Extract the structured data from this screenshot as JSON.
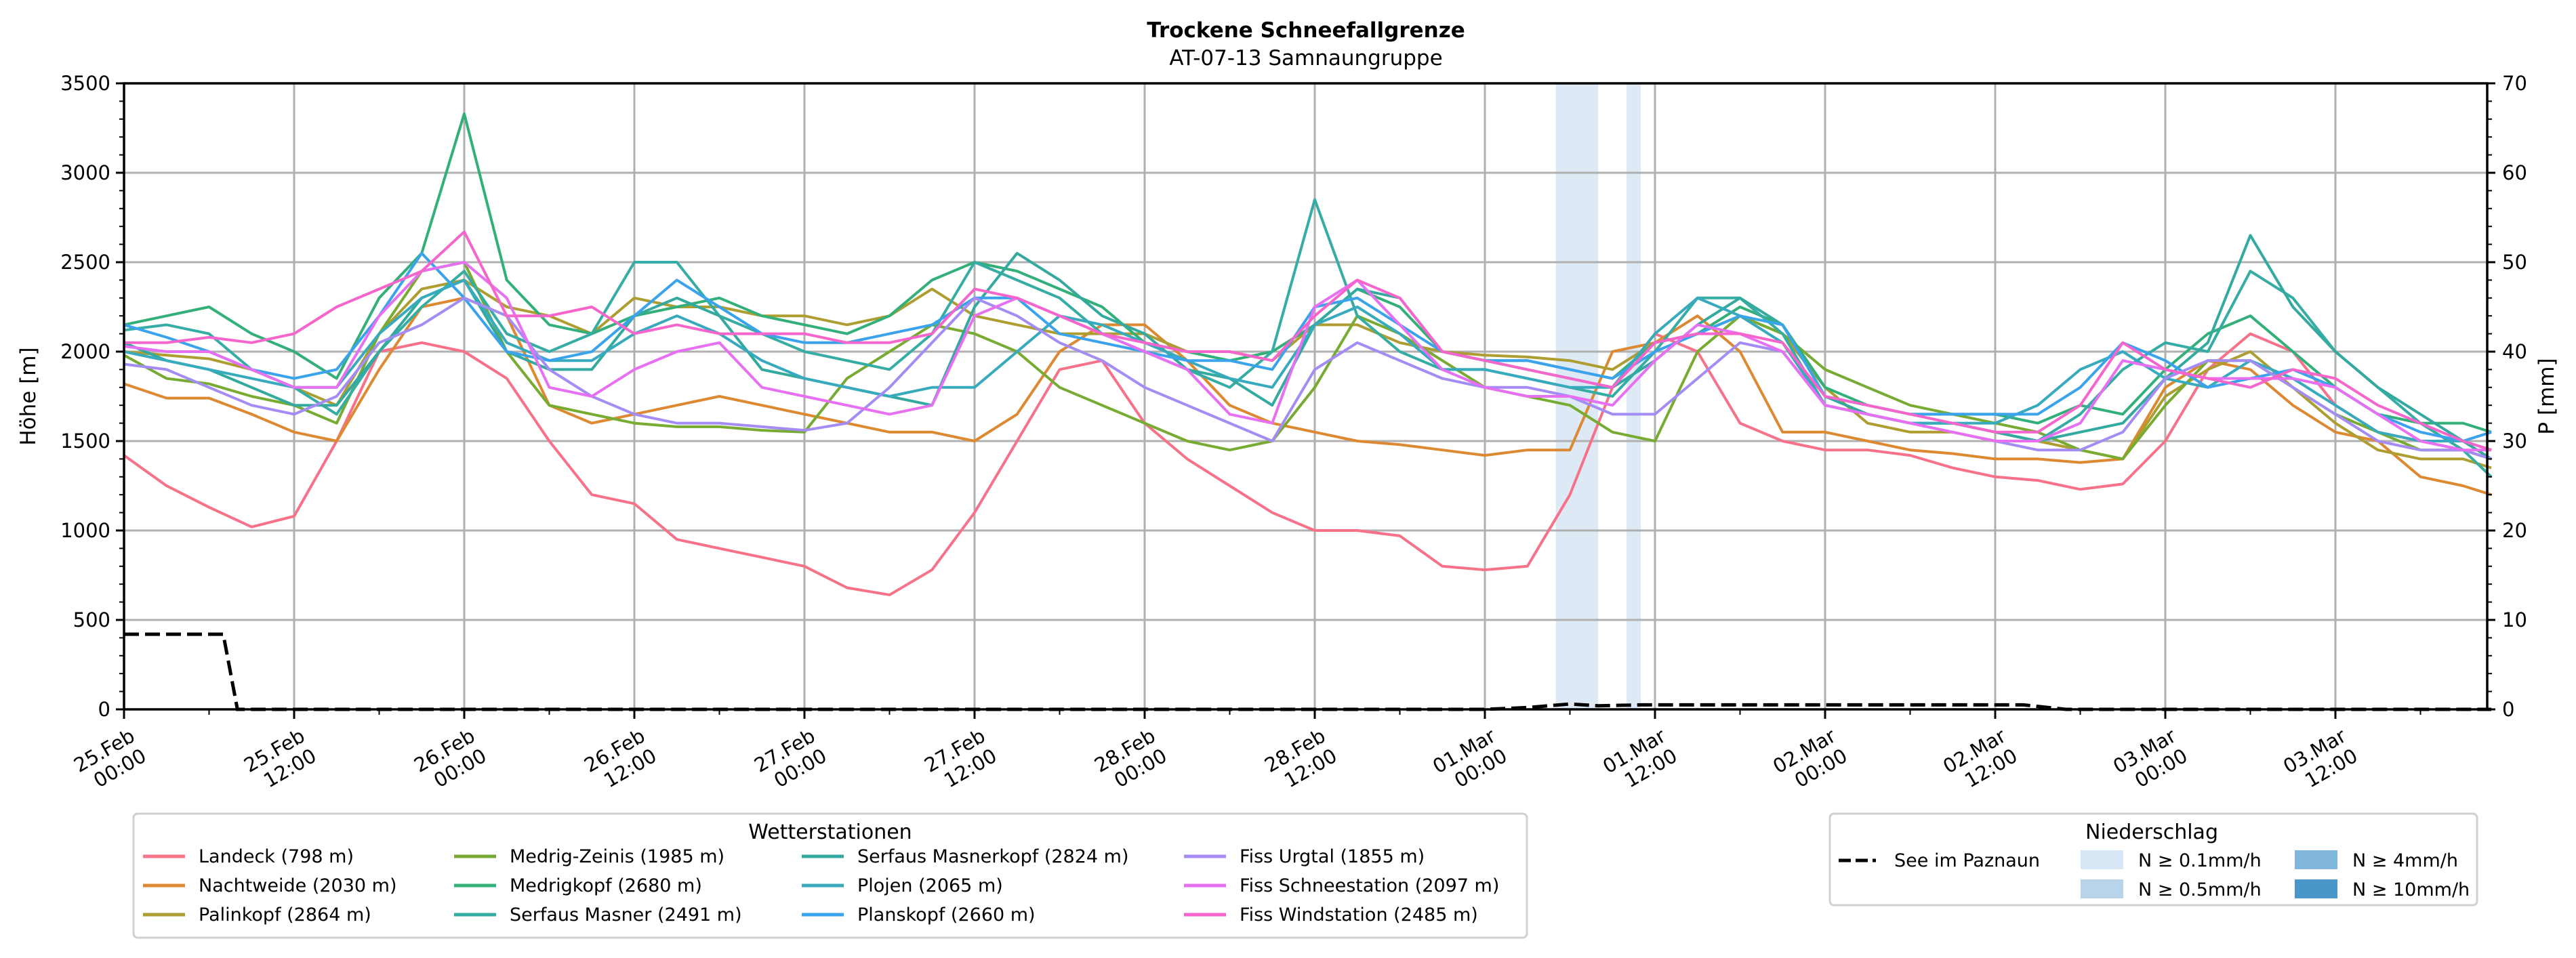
{
  "chart_data": {
    "type": "line",
    "title": "Trockene Schneefallgrenze",
    "subtitle": "AT-07-13 Samnaungruppe",
    "ylabel": "Höhe [m]",
    "ylabel_right": "P [mm]",
    "ylim": [
      0,
      3500
    ],
    "ylim_right": [
      0,
      70
    ],
    "yticks": [
      "0",
      "500",
      "1000",
      "1500",
      "2000",
      "2500",
      "3000",
      "3500"
    ],
    "yticks_right": [
      "0",
      "10",
      "20",
      "30",
      "40",
      "50",
      "60",
      "70"
    ],
    "x_unit": "hours since 25.Feb 00:00",
    "xlim": [
      0,
      167
    ],
    "xticks": [
      {
        "hour": 0,
        "line1": "25.Feb",
        "line2": "00:00"
      },
      {
        "hour": 12,
        "line1": "25.Feb",
        "line2": "12:00"
      },
      {
        "hour": 24,
        "line1": "26.Feb",
        "line2": "00:00"
      },
      {
        "hour": 36,
        "line1": "26.Feb",
        "line2": "12:00"
      },
      {
        "hour": 48,
        "line1": "27.Feb",
        "line2": "00:00"
      },
      {
        "hour": 60,
        "line1": "27.Feb",
        "line2": "12:00"
      },
      {
        "hour": 72,
        "line1": "28.Feb",
        "line2": "00:00"
      },
      {
        "hour": 84,
        "line1": "28.Feb",
        "line2": "12:00"
      },
      {
        "hour": 96,
        "line1": "01.Mar",
        "line2": "00:00"
      },
      {
        "hour": 108,
        "line1": "01.Mar",
        "line2": "12:00"
      },
      {
        "hour": 120,
        "line1": "02.Mar",
        "line2": "00:00"
      },
      {
        "hour": 132,
        "line1": "02.Mar",
        "line2": "12:00"
      },
      {
        "hour": 144,
        "line1": "03.Mar",
        "line2": "00:00"
      },
      {
        "hour": 156,
        "line1": "03.Mar",
        "line2": "12:00"
      }
    ],
    "grid": true,
    "x": [
      0,
      3,
      6,
      9,
      12,
      15,
      18,
      21,
      24,
      27,
      30,
      33,
      36,
      39,
      42,
      45,
      48,
      51,
      54,
      57,
      60,
      63,
      66,
      69,
      72,
      75,
      78,
      81,
      84,
      87,
      90,
      93,
      96,
      99,
      102,
      105,
      108,
      111,
      114,
      117,
      120,
      123,
      126,
      129,
      132,
      135,
      138,
      141,
      144,
      147,
      150,
      153,
      156,
      159,
      162,
      165,
      167
    ],
    "series": [
      {
        "name": "Landeck (798 m)",
        "color": "#f77189",
        "values": [
          1420,
          1250,
          1130,
          1020,
          1080,
          1500,
          2000,
          2050,
          2000,
          1850,
          1500,
          1200,
          1150,
          950,
          900,
          850,
          800,
          680,
          640,
          780,
          1100,
          1500,
          1900,
          1950,
          1600,
          1400,
          1250,
          1100,
          1000,
          1000,
          970,
          800,
          780,
          800,
          1200,
          1800,
          2100,
          2000,
          1600,
          1500,
          1450,
          1450,
          1420,
          1350,
          1300,
          1280,
          1230,
          1260,
          1500,
          1900,
          2100,
          2000,
          1700,
          1550,
          1500,
          1450,
          1400
        ]
      },
      {
        "name": "Nachtweide (2030 m)",
        "color": "#dc8932",
        "values": [
          1820,
          1740,
          1740,
          1650,
          1550,
          1500,
          1900,
          2250,
          2300,
          2200,
          1700,
          1600,
          1650,
          1700,
          1750,
          1700,
          1650,
          1600,
          1550,
          1550,
          1500,
          1650,
          2000,
          2150,
          2150,
          1950,
          1700,
          1600,
          1550,
          1500,
          1480,
          1450,
          1420,
          1450,
          1450,
          2000,
          2050,
          2200,
          2000,
          1550,
          1550,
          1500,
          1450,
          1430,
          1400,
          1400,
          1380,
          1400,
          1800,
          1950,
          1900,
          1700,
          1550,
          1500,
          1300,
          1250,
          1200
        ]
      },
      {
        "name": "Palinkopf (2864 m)",
        "color": "#ae9d31",
        "values": [
          2000,
          1980,
          1960,
          1900,
          1800,
          1700,
          2100,
          2350,
          2400,
          2250,
          2200,
          2100,
          2300,
          2250,
          2250,
          2200,
          2200,
          2150,
          2200,
          2350,
          2200,
          2150,
          2100,
          2100,
          2100,
          2000,
          2000,
          1950,
          2150,
          2150,
          2050,
          2000,
          1980,
          1970,
          1950,
          1900,
          2050,
          2100,
          2200,
          2100,
          1800,
          1600,
          1550,
          1550,
          1500,
          1500,
          1450,
          1400,
          1750,
          1900,
          2000,
          1800,
          1600,
          1450,
          1400,
          1400,
          1350
        ]
      },
      {
        "name": "Medrig-Zeinis (1985 m)",
        "color": "#77ab31",
        "values": [
          1980,
          1850,
          1820,
          1750,
          1700,
          1600,
          2100,
          2450,
          2500,
          2000,
          1700,
          1650,
          1600,
          1580,
          1580,
          1560,
          1550,
          1850,
          2000,
          2150,
          2100,
          2000,
          1800,
          1700,
          1600,
          1500,
          1450,
          1500,
          1800,
          2200,
          2100,
          1950,
          1800,
          1750,
          1700,
          1550,
          1500,
          2000,
          2200,
          2100,
          1900,
          1800,
          1700,
          1650,
          1600,
          1550,
          1450,
          1400,
          1700,
          1950,
          1950,
          1800,
          1650,
          1550,
          1450,
          1450,
          1400
        ]
      },
      {
        "name": "Medrigkopf (2680 m)",
        "color": "#33b07a",
        "values": [
          2150,
          2200,
          2250,
          2100,
          2000,
          1850,
          2300,
          2550,
          3330,
          2400,
          2150,
          2100,
          2200,
          2250,
          2300,
          2200,
          2150,
          2100,
          2200,
          2400,
          2500,
          2450,
          2350,
          2250,
          2050,
          2000,
          1950,
          2000,
          2150,
          2350,
          2250,
          2000,
          1950,
          1950,
          1900,
          1850,
          2050,
          2100,
          2250,
          2150,
          1800,
          1700,
          1650,
          1650,
          1650,
          1600,
          1700,
          1650,
          1900,
          2100,
          2200,
          2000,
          1800,
          1650,
          1600,
          1600,
          1550
        ]
      },
      {
        "name": "Serfaus Masner (2491 m)",
        "color": "#36ada4",
        "values": [
          2120,
          2150,
          2100,
          1900,
          1800,
          1650,
          2000,
          2250,
          2450,
          2100,
          2000,
          2100,
          2500,
          2500,
          2200,
          2100,
          2000,
          1950,
          1900,
          2100,
          2500,
          2400,
          2300,
          2100,
          2000,
          1900,
          1800,
          2000,
          2850,
          2200,
          2000,
          1900,
          1900,
          1850,
          1800,
          1750,
          2000,
          2300,
          2300,
          2100,
          1700,
          1650,
          1600,
          1600,
          1550,
          1500,
          1650,
          1900,
          2050,
          2000,
          2450,
          2300,
          2000,
          1800,
          1600,
          1450,
          1300
        ]
      },
      {
        "name": "Serfaus Masnerkopf (2824 m)",
        "color": "#33a9a0",
        "values": [
          2050,
          1950,
          1900,
          1800,
          1700,
          1700,
          2000,
          2300,
          2400,
          2000,
          1900,
          1900,
          2200,
          2300,
          2200,
          1900,
          1850,
          1800,
          1750,
          1700,
          2250,
          2550,
          2400,
          2200,
          2100,
          1900,
          1850,
          1700,
          2150,
          2350,
          2300,
          2000,
          1950,
          1900,
          1850,
          1800,
          1950,
          2150,
          2300,
          2150,
          1750,
          1650,
          1600,
          1600,
          1550,
          1500,
          1550,
          1600,
          1850,
          2050,
          2650,
          2250,
          2000,
          1800,
          1650,
          1500,
          1400
        ]
      },
      {
        "name": "Plojen (2065 m)",
        "color": "#38aabe",
        "values": [
          2000,
          1950,
          1900,
          1850,
          1800,
          1800,
          2100,
          2300,
          2400,
          2050,
          1950,
          1950,
          2100,
          2200,
          2100,
          1950,
          1850,
          1800,
          1750,
          1800,
          1800,
          2000,
          2200,
          2150,
          2050,
          1950,
          1850,
          1800,
          2150,
          2250,
          2100,
          1900,
          1900,
          1850,
          1800,
          1800,
          2100,
          2300,
          2200,
          2050,
          1700,
          1650,
          1600,
          1600,
          1600,
          1700,
          1900,
          2000,
          1850,
          1800,
          1950,
          1850,
          1700,
          1550,
          1500,
          1500,
          1450
        ]
      },
      {
        "name": "Planskopf (2660 m)",
        "color": "#3ba3ec",
        "values": [
          2150,
          2080,
          2000,
          1900,
          1850,
          1900,
          2200,
          2550,
          2300,
          2000,
          1950,
          2000,
          2200,
          2400,
          2250,
          2100,
          2050,
          2050,
          2100,
          2150,
          2300,
          2300,
          2100,
          2050,
          2000,
          1950,
          1950,
          1900,
          2250,
          2300,
          2150,
          2000,
          1950,
          1950,
          1900,
          1850,
          2000,
          2100,
          2200,
          2150,
          1750,
          1700,
          1650,
          1650,
          1650,
          1650,
          1800,
          2050,
          1950,
          1800,
          1850,
          1900,
          1800,
          1650,
          1550,
          1500,
          1550
        ]
      },
      {
        "name": "Fiss Urgtal  (1855 m)",
        "color": "#a48cf4",
        "values": [
          1930,
          1900,
          1800,
          1700,
          1650,
          1750,
          2050,
          2150,
          2300,
          2200,
          1900,
          1750,
          1650,
          1600,
          1600,
          1580,
          1560,
          1600,
          1800,
          2050,
          2300,
          2200,
          2050,
          1950,
          1800,
          1700,
          1600,
          1500,
          1900,
          2050,
          1950,
          1850,
          1800,
          1800,
          1750,
          1650,
          1650,
          1850,
          2050,
          2000,
          1700,
          1650,
          1600,
          1550,
          1500,
          1450,
          1450,
          1550,
          1850,
          1950,
          1950,
          1800,
          1650,
          1500,
          1450,
          1450,
          1400
        ]
      },
      {
        "name": "Fiss Schneestation (2097 m)",
        "color": "#e66ff2",
        "values": [
          2030,
          2000,
          2000,
          1900,
          1800,
          1800,
          2200,
          2450,
          2500,
          2300,
          1800,
          1750,
          1900,
          2000,
          2050,
          1800,
          1750,
          1700,
          1650,
          1700,
          2200,
          2300,
          2200,
          2100,
          2000,
          1900,
          1650,
          1600,
          2250,
          2400,
          2150,
          1900,
          1800,
          1750,
          1750,
          1700,
          1950,
          2150,
          2100,
          2000,
          1700,
          1650,
          1600,
          1550,
          1500,
          1500,
          1600,
          1950,
          1900,
          1850,
          1850,
          1850,
          1800,
          1650,
          1500,
          1450,
          1450
        ]
      },
      {
        "name": "Fiss Windstation (2485 m)",
        "color": "#f565cc",
        "values": [
          2050,
          2050,
          2080,
          2050,
          2100,
          2250,
          2350,
          2450,
          2670,
          2200,
          2200,
          2250,
          2100,
          2150,
          2100,
          2100,
          2100,
          2050,
          2050,
          2100,
          2350,
          2300,
          2200,
          2100,
          2050,
          2000,
          2000,
          1950,
          2200,
          2400,
          2300,
          2000,
          1950,
          1900,
          1850,
          1800,
          2050,
          2100,
          2100,
          2050,
          1750,
          1700,
          1650,
          1600,
          1550,
          1550,
          1700,
          2050,
          1900,
          1850,
          1800,
          1900,
          1850,
          1700,
          1600,
          1500,
          1450
        ]
      }
    ],
    "precip_line": {
      "name": "See im Paznaun",
      "color": "#000000",
      "style": "dashed",
      "x": [
        0,
        3,
        6,
        7,
        8,
        24,
        48,
        72,
        96,
        99,
        102,
        104,
        107,
        110,
        114,
        120,
        126,
        132,
        134,
        137,
        140,
        150,
        160,
        167
      ],
      "values": [
        8.4,
        8.4,
        8.4,
        8.4,
        0.0,
        0.0,
        0.0,
        0.0,
        0.0,
        0.2,
        0.6,
        0.4,
        0.5,
        0.5,
        0.5,
        0.5,
        0.5,
        0.5,
        0.5,
        0.0,
        0.0,
        0.0,
        0.0,
        0.0
      ]
    },
    "precip_spans": [
      {
        "start": 101,
        "end": 104,
        "class": "N ≥ 0.1mm/h",
        "color": "#dde9f5"
      },
      {
        "start": 106,
        "end": 107,
        "class": "N ≥ 0.1mm/h",
        "color": "#dde9f5"
      }
    ],
    "legend_stations": {
      "title": "Wetterstationen",
      "position": "lower-center-left"
    },
    "legend_precip": {
      "title": "Niederschlag",
      "position": "lower-right",
      "line_label": "See im Paznaun",
      "items": [
        {
          "label": "N ≥ 0.1mm/h",
          "color": "#d6e6f4"
        },
        {
          "label": "N ≥ 0.5mm/h",
          "color": "#b8d4ea"
        },
        {
          "label": "N ≥ 4mm/h",
          "color": "#7fb6da"
        },
        {
          "label": "N ≥ 10mm/h",
          "color": "#4a96c8"
        }
      ]
    }
  }
}
